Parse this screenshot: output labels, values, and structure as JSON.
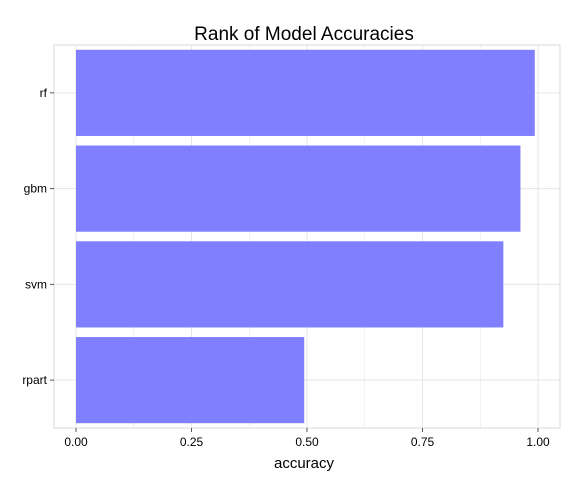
{
  "chart_data": {
    "type": "bar",
    "orientation": "horizontal",
    "title": "Rank of Model Accuracies",
    "xlabel": "accuracy",
    "ylabel": "",
    "categories": [
      "rf",
      "gbm",
      "svm",
      "rpart"
    ],
    "values": [
      0.993,
      0.962,
      0.925,
      0.494
    ],
    "xlim": [
      0,
      1
    ],
    "xticks": [
      "0.00",
      "0.25",
      "0.50",
      "0.75",
      "1.00"
    ],
    "grid": true,
    "bar_color": "#7F7FFF",
    "grid_color": "#E5E5E5",
    "panel_border_color": "#D9D9D9"
  }
}
